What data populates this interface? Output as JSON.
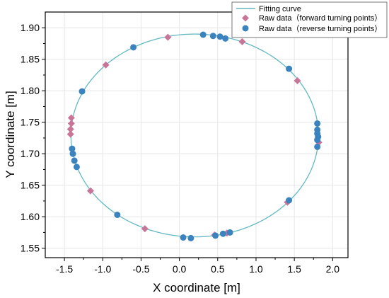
{
  "chart_data": {
    "type": "scatter",
    "title": "",
    "xlabel": "X coordinate [m]",
    "ylabel": "Y coordinate [m]",
    "xlim": [
      -1.75,
      2.2
    ],
    "ylim": [
      1.535,
      1.925
    ],
    "x_ticks": [
      -1.5,
      -1.0,
      -0.5,
      0.0,
      0.5,
      1.0,
      1.5,
      2.0
    ],
    "y_ticks": [
      1.55,
      1.6,
      1.65,
      1.7,
      1.75,
      1.8,
      1.85,
      1.9
    ],
    "x_tick_labels": [
      "-1.5",
      "-1.0",
      "-0.5",
      "0.0",
      "0.5",
      "1.0",
      "1.5",
      "2.0"
    ],
    "y_tick_labels": [
      "1.55",
      "1.60",
      "1.65",
      "1.70",
      "1.75",
      "1.80",
      "1.85",
      "1.90"
    ],
    "grid": true,
    "legend_position": "top-right",
    "fitting_curve": {
      "name": "Fitting curve",
      "color": "#62b9c3",
      "ellipse": {
        "center_x": 0.2,
        "center_y": 1.729,
        "semi_axis_x": 1.615,
        "semi_axis_y": 0.161
      }
    },
    "series": [
      {
        "name": "Raw data（forward turning points）",
        "marker": "diamond",
        "color": "#c9759a",
        "points": [
          {
            "x": -0.15,
            "y": 1.885
          },
          {
            "x": -0.96,
            "y": 1.841
          },
          {
            "x": 0.82,
            "y": 1.878
          },
          {
            "x": 1.54,
            "y": 1.816
          },
          {
            "x": -1.41,
            "y": 1.757
          },
          {
            "x": -1.41,
            "y": 1.748
          },
          {
            "x": -1.42,
            "y": 1.739
          },
          {
            "x": -1.42,
            "y": 1.731
          },
          {
            "x": 1.82,
            "y": 1.718
          },
          {
            "x": -1.16,
            "y": 1.641
          },
          {
            "x": -0.45,
            "y": 1.581
          },
          {
            "x": 0.46,
            "y": 1.571
          },
          {
            "x": 1.41,
            "y": 1.623
          },
          {
            "x": 0.62,
            "y": 1.574
          }
        ]
      },
      {
        "name": "Raw data（reverse turning points）",
        "marker": "circle",
        "color": "#3b83bf",
        "points": [
          {
            "x": 0.31,
            "y": 1.889
          },
          {
            "x": 0.44,
            "y": 1.887
          },
          {
            "x": 0.53,
            "y": 1.886
          },
          {
            "x": 0.6,
            "y": 1.883
          },
          {
            "x": -0.6,
            "y": 1.869
          },
          {
            "x": 1.43,
            "y": 1.835
          },
          {
            "x": -1.27,
            "y": 1.799
          },
          {
            "x": 1.8,
            "y": 1.748
          },
          {
            "x": 1.8,
            "y": 1.738
          },
          {
            "x": 1.8,
            "y": 1.732
          },
          {
            "x": 1.81,
            "y": 1.727
          },
          {
            "x": 1.8,
            "y": 1.722
          },
          {
            "x": 1.8,
            "y": 1.711
          },
          {
            "x": -1.4,
            "y": 1.708
          },
          {
            "x": -1.39,
            "y": 1.7
          },
          {
            "x": -1.37,
            "y": 1.689
          },
          {
            "x": -1.34,
            "y": 1.679
          },
          {
            "x": -0.81,
            "y": 1.603
          },
          {
            "x": 1.43,
            "y": 1.626
          },
          {
            "x": 0.05,
            "y": 1.567
          },
          {
            "x": 0.15,
            "y": 1.566
          },
          {
            "x": 0.47,
            "y": 1.57
          },
          {
            "x": 0.57,
            "y": 1.573
          },
          {
            "x": 0.66,
            "y": 1.575
          }
        ]
      }
    ]
  }
}
